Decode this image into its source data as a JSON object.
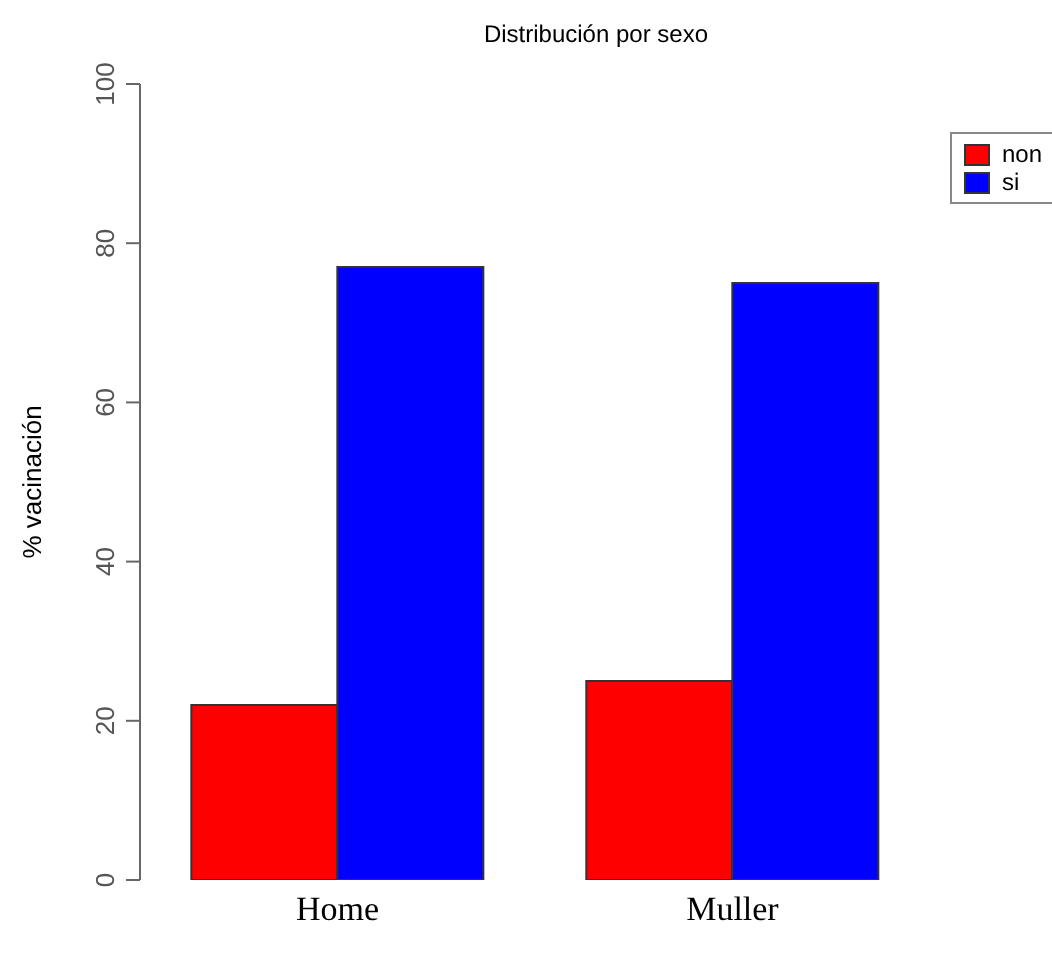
{
  "chart_data": {
    "type": "bar",
    "title": "Distribución por sexo",
    "ylabel": "% vacinación",
    "categories": [
      "Home",
      "Muller"
    ],
    "series": [
      {
        "name": "non",
        "color": "#ff0000",
        "values": [
          22,
          25
        ]
      },
      {
        "name": "si",
        "color": "#0000ff",
        "values": [
          77,
          75
        ]
      }
    ],
    "ylim": [
      0,
      100
    ],
    "yticks": [
      0,
      20,
      40,
      60,
      80,
      100
    ],
    "grid": false,
    "legend": "top right"
  }
}
